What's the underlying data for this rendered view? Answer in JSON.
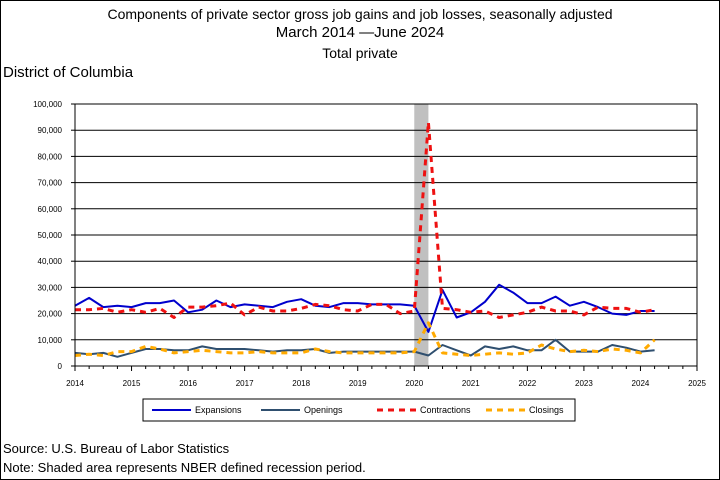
{
  "chart_data": {
    "type": "line",
    "title": "Components of private sector gross job gains and job losses, seasonally adjusted",
    "subtitle": "March 2014 —June 2024",
    "subtitle2": "Total private",
    "region": "District of Columbia",
    "source": "Source: U.S. Bureau of Labor Statistics",
    "note": "Note: Shaded area represents NBER defined recession period.",
    "xlim": [
      2014,
      2025
    ],
    "ylim": [
      0,
      100000
    ],
    "x_ticks": [
      "2014",
      "2015",
      "2016",
      "2017",
      "2018",
      "2019",
      "2020",
      "2021",
      "2022",
      "2023",
      "2024",
      "2025"
    ],
    "y_ticks": [
      "0",
      "10,000",
      "20,000",
      "30,000",
      "40,000",
      "50,000",
      "60,000",
      "70,000",
      "80,000",
      "90,000",
      "100,000"
    ],
    "grid": true,
    "legend_position": "bottom",
    "recession": [
      2020.0,
      2020.25
    ],
    "x": [
      2014.0,
      2014.25,
      2014.5,
      2014.75,
      2015.0,
      2015.25,
      2015.5,
      2015.75,
      2016.0,
      2016.25,
      2016.5,
      2016.75,
      2017.0,
      2017.25,
      2017.5,
      2017.75,
      2018.0,
      2018.25,
      2018.5,
      2018.75,
      2019.0,
      2019.25,
      2019.5,
      2019.75,
      2020.0,
      2020.25,
      2020.5,
      2020.75,
      2021.0,
      2021.25,
      2021.5,
      2021.75,
      2022.0,
      2022.25,
      2022.5,
      2022.75,
      2023.0,
      2023.25,
      2023.5,
      2023.75,
      2024.0,
      2024.25
    ],
    "series": [
      {
        "name": "Expansions",
        "color": "#0000cc",
        "dash": "solid",
        "width": 2,
        "values": [
          23000,
          26000,
          22500,
          23000,
          22500,
          24000,
          24000,
          25000,
          20500,
          21500,
          25000,
          22500,
          23500,
          23000,
          22500,
          24500,
          25500,
          23000,
          22500,
          24000,
          24000,
          23500,
          23500,
          23500,
          23000,
          13000,
          29000,
          18500,
          20500,
          24500,
          31000,
          28000,
          24000,
          24000,
          26500,
          23000,
          24500,
          22500,
          20000,
          19500,
          21000,
          21000
        ]
      },
      {
        "name": "Openings",
        "color": "#2f4f6f",
        "dash": "solid",
        "width": 2,
        "values": [
          5000,
          4500,
          5000,
          3500,
          5000,
          6500,
          6500,
          6000,
          6000,
          7500,
          6500,
          6500,
          6500,
          6000,
          5500,
          6000,
          6000,
          6500,
          5000,
          5500,
          5500,
          5500,
          5500,
          5500,
          5500,
          4000,
          8000,
          6000,
          4000,
          7500,
          6500,
          7500,
          6000,
          6000,
          10000,
          5500,
          5500,
          5500,
          8000,
          7000,
          5500,
          6000
        ]
      },
      {
        "name": "Contractions",
        "color": "#ee1111",
        "dash": "6,5",
        "width": 3,
        "values": [
          21500,
          21500,
          22000,
          20500,
          21500,
          20500,
          22000,
          18500,
          22500,
          22500,
          23000,
          24000,
          19500,
          22500,
          21000,
          21000,
          22000,
          23500,
          23000,
          21500,
          21000,
          23500,
          23500,
          20000,
          21000,
          93000,
          22000,
          21500,
          20500,
          21000,
          18500,
          19500,
          20500,
          22500,
          21000,
          21000,
          19500,
          22500,
          22000,
          22000,
          20500,
          21500
        ]
      },
      {
        "name": "Closings",
        "color": "#ffaa00",
        "dash": "6,5",
        "width": 3,
        "values": [
          4000,
          4500,
          4000,
          5500,
          5500,
          7500,
          6500,
          5000,
          5500,
          6000,
          5500,
          5000,
          5000,
          5500,
          5000,
          5000,
          5000,
          6500,
          5500,
          5000,
          5000,
          5000,
          5000,
          5000,
          5500,
          16500,
          5000,
          4500,
          4000,
          4500,
          5000,
          4500,
          5000,
          8000,
          6500,
          5500,
          6000,
          5500,
          6500,
          6000,
          5000,
          10000
        ]
      }
    ]
  }
}
